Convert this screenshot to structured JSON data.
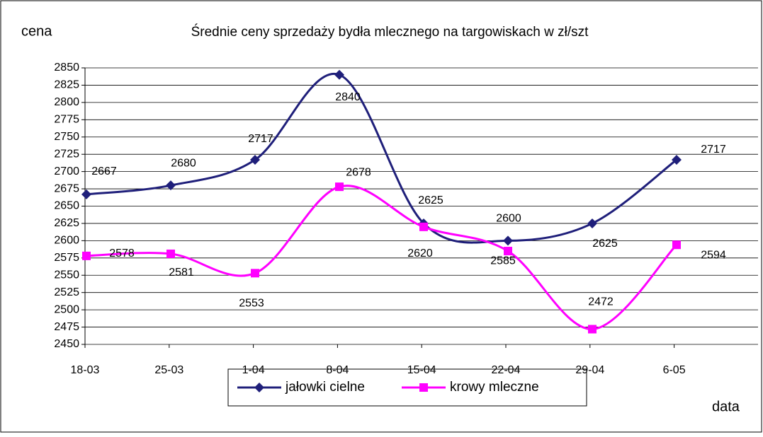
{
  "chart_data": {
    "type": "line",
    "title": "Średnie ceny sprzedaży bydła mlecznego na targowiskach w zł/szt",
    "y_label": "cena",
    "x_label": "data",
    "categories": [
      "18-03",
      "25-03",
      "1-04",
      "8-04",
      "15-04",
      "22-04",
      "29-04",
      "6-05"
    ],
    "series": [
      {
        "name": "jałowki cielne",
        "color": "#1f1f7a",
        "marker": "diamond",
        "values": [
          2667,
          2680,
          2717,
          2840,
          2625,
          2600,
          2625,
          2717
        ]
      },
      {
        "name": "krowy mleczne",
        "color": "#ff00ff",
        "marker": "square",
        "values": [
          2578,
          2581,
          2553,
          2678,
          2620,
          2585,
          2472,
          2594
        ]
      }
    ],
    "ylim": [
      2450,
      2850
    ],
    "yticks": [
      2450,
      2475,
      2500,
      2525,
      2550,
      2575,
      2600,
      2625,
      2650,
      2675,
      2700,
      2725,
      2750,
      2775,
      2800,
      2825,
      2850
    ],
    "grid": true,
    "legend": "bottom"
  }
}
